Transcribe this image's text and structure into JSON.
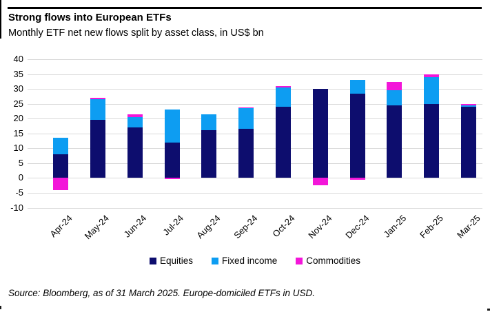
{
  "header": {
    "title": "Strong flows into European ETFs",
    "subtitle": "Monthly ETF net new flows split by asset class, in US$ bn"
  },
  "footer": {
    "source": "Source: Bloomberg, as of 31 March 2025. Europe-domiciled ETFs in USD."
  },
  "colors": {
    "equities": "#0d0d6e",
    "fixed_income": "#0d9df2",
    "commodities": "#f316d9",
    "gridline": "#d9d9d9",
    "text": "#000000"
  },
  "chart_data": {
    "type": "bar",
    "stacked": true,
    "title": "Strong flows into European ETFs",
    "subtitle": "Monthly ETF net new flows split by asset class, in US$ bn",
    "xlabel": "",
    "ylabel": "US$ bn",
    "ylim": [
      -10,
      40
    ],
    "ytick_step": 5,
    "grid": true,
    "legend_position": "bottom",
    "categories": [
      "Apr-24",
      "May-24",
      "Jun-24",
      "Jul-24",
      "Aug-24",
      "Sep-24",
      "Oct-24",
      "Nov-24",
      "Dec-24",
      "Jan-25",
      "Feb-25",
      "Mar-25"
    ],
    "series": [
      {
        "name": "Equities",
        "color": "#0d0d6e",
        "values": [
          8,
          19.5,
          17,
          12,
          16,
          16.5,
          24,
          30,
          28.5,
          24.5,
          25,
          24
        ]
      },
      {
        "name": "Fixed income",
        "color": "#0d9df2",
        "values": [
          5.5,
          7,
          3.5,
          11,
          5.5,
          7,
          6.5,
          0,
          4.5,
          5,
          9,
          0.5
        ]
      },
      {
        "name": "Commodities",
        "color": "#f316d9",
        "values": [
          -4,
          0.5,
          1,
          -0.3,
          0,
          0.3,
          0.5,
          -2.5,
          -0.5,
          2.8,
          1,
          0.5
        ]
      }
    ]
  }
}
